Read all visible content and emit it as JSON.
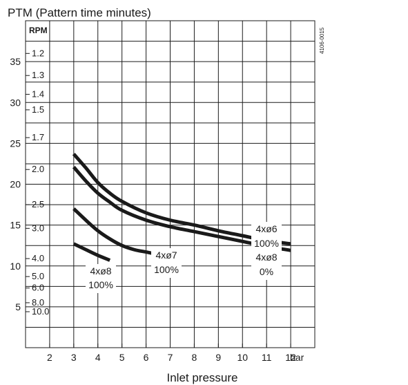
{
  "chart_data": {
    "type": "line",
    "title": "PTM (Pattern time minutes)",
    "xlabel": "Inlet pressure",
    "x_unit": "bar",
    "ylabel": "",
    "rpm_label": "RPM",
    "figure_code": "4106-0015",
    "xlim": [
      1,
      13
    ],
    "ylim": [
      0,
      40
    ],
    "grid": true,
    "x_ticks": [
      2,
      3,
      4,
      5,
      6,
      7,
      8,
      9,
      10,
      11,
      12
    ],
    "y_ticks": [
      5,
      10,
      15,
      20,
      25,
      30,
      35
    ],
    "rpm_ticks": [
      {
        "label": "1.2",
        "y": 36.0
      },
      {
        "label": "1.3",
        "y": 33.3
      },
      {
        "label": "1.4",
        "y": 31.0
      },
      {
        "label": "1.5",
        "y": 29.1
      },
      {
        "label": "1.7",
        "y": 25.7
      },
      {
        "label": "2.0",
        "y": 21.8
      },
      {
        "label": "2.5",
        "y": 17.5
      },
      {
        "label": "3.0",
        "y": 14.6
      },
      {
        "label": "4.0",
        "y": 10.9
      },
      {
        "label": "5.0",
        "y": 8.7
      },
      {
        "label": "6.0",
        "y": 7.3
      },
      {
        "label": "8.0",
        "y": 5.5
      },
      {
        "label": "10.0",
        "y": 4.4
      }
    ],
    "series": [
      {
        "label_line1": "4xø6",
        "label_line2": "100%",
        "x": [
          3,
          3.5,
          4,
          4.5,
          5,
          6,
          7,
          8,
          9,
          10,
          11,
          12
        ],
        "y": [
          23.7,
          22.0,
          20.2,
          18.9,
          17.9,
          16.5,
          15.6,
          15.0,
          14.3,
          13.7,
          13.1,
          12.7
        ]
      },
      {
        "label_line1": "4xø8",
        "label_line2": "0%",
        "x": [
          3,
          3.5,
          4,
          4.5,
          5,
          6,
          7,
          8,
          9,
          10,
          11,
          12
        ],
        "y": [
          22.1,
          20.4,
          18.9,
          17.8,
          16.8,
          15.6,
          14.8,
          14.2,
          13.6,
          13.0,
          12.4,
          11.9
        ]
      },
      {
        "label_line1": "4xø7",
        "label_line2": "100%",
        "x": [
          3,
          3.5,
          4,
          4.5,
          5,
          5.5,
          6,
          6.5,
          7
        ],
        "y": [
          17.0,
          15.6,
          14.3,
          13.3,
          12.5,
          12.0,
          11.7,
          11.4,
          11.1
        ]
      },
      {
        "label_line1": "4xø8",
        "label_line2": "100%",
        "x": [
          3,
          3.5,
          4,
          4.5
        ],
        "y": [
          12.7,
          12.0,
          11.3,
          10.7
        ]
      }
    ]
  }
}
